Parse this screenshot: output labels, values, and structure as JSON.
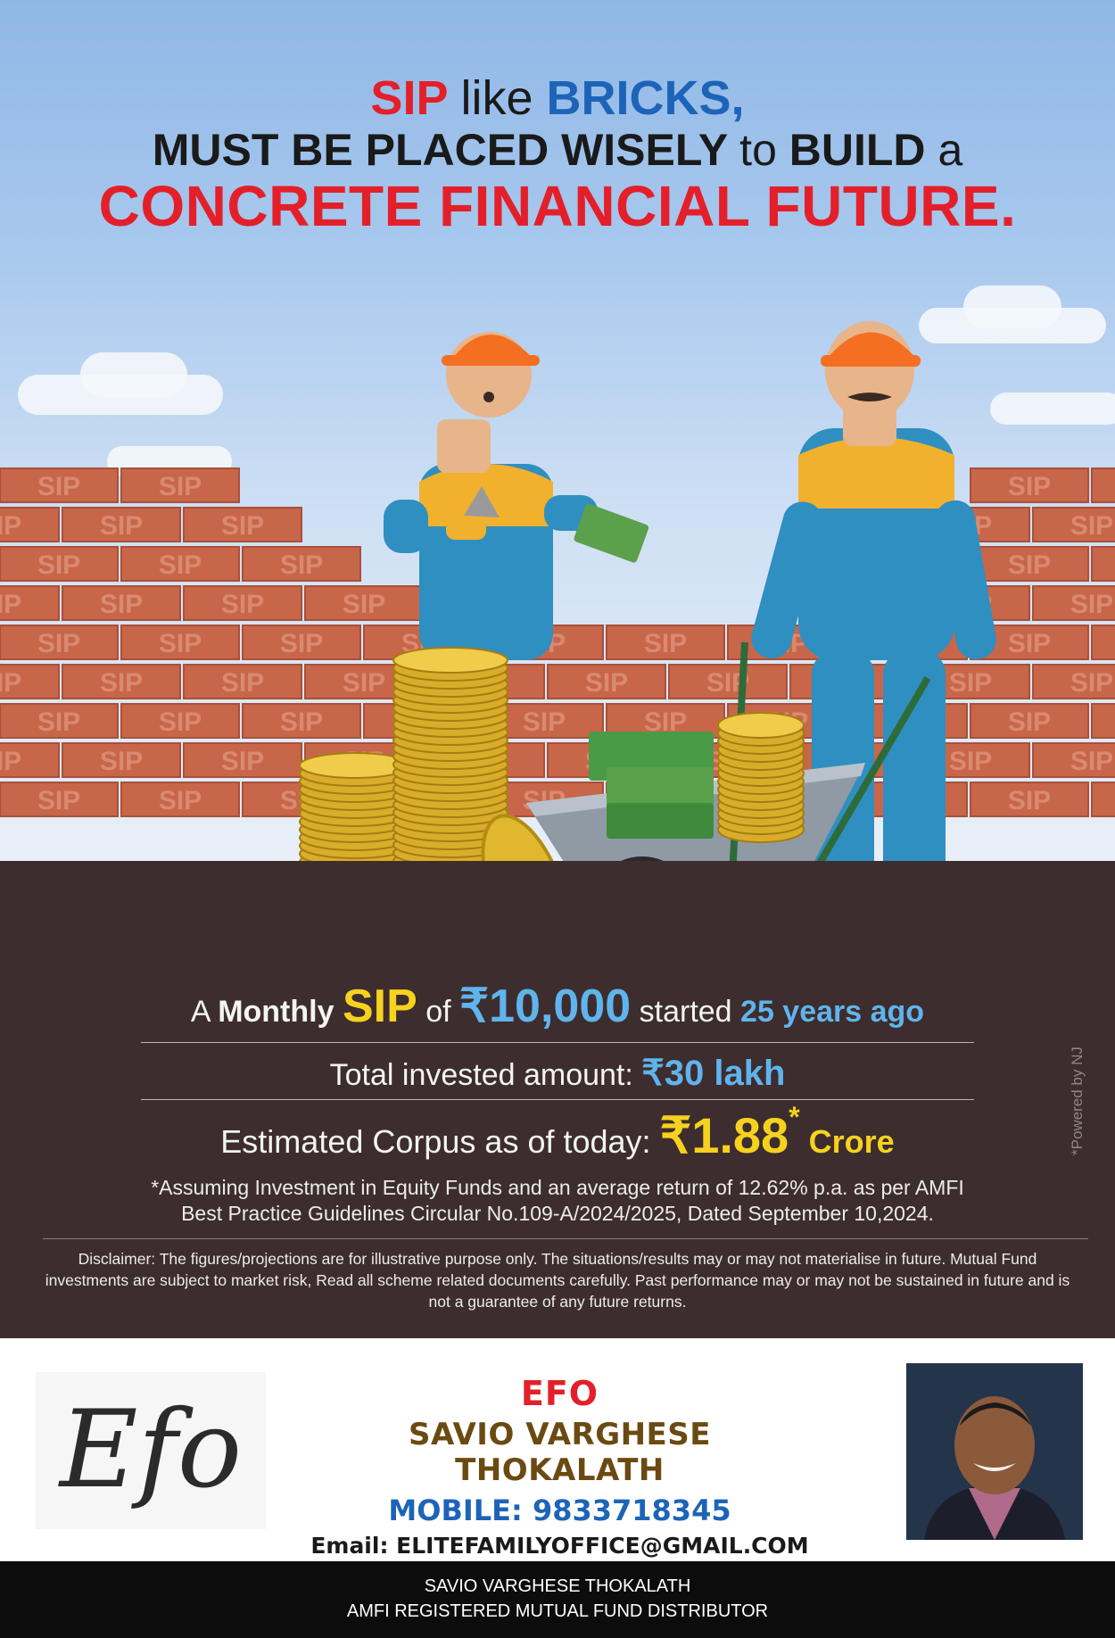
{
  "headline": {
    "line1": {
      "sip": "SIP",
      "like": "like",
      "bricks": "BRICKS,"
    },
    "line2": {
      "a": "MUST BE PLACED WISELY",
      "b": "to",
      "c": "BUILD",
      "d": "a"
    },
    "line3": "CONCRETE FINANCIAL FUTURE."
  },
  "brick_text": "SIP",
  "info": {
    "line1": {
      "a": "A",
      "monthly": "Monthly",
      "sip": "SIP",
      "of": "of",
      "amount": "₹10,000",
      "started": "started",
      "years": "25 years ago"
    },
    "line2": {
      "label": "Total invested amount:",
      "value": "₹30 lakh"
    },
    "line3": {
      "label": "Estimated Corpus as of today:",
      "value": "₹1.88",
      "asterisk": "*",
      "unit": "Crore"
    },
    "assumption_1": "*Assuming Investment in Equity Funds and an average return of 12.62% p.a. as per AMFI",
    "assumption_2": "Best Practice  Guidelines Circular No.109-A/2024/2025, Dated September 10,2024.",
    "disclaimer": "Disclaimer: The figures/projections are for illustrative purpose only. The situations/results may or may not materialise in future. Mutual Fund investments are subject to market risk, Read all scheme related documents carefully. Past performance may or may not be sustained in future and is not a guarantee of any future returns.",
    "powered_by": "*Powered by NJ"
  },
  "contact": {
    "logo": "Efo",
    "company": "EFO",
    "name": "SAVIO VARGHESE THOKALATH",
    "mobile": "MOBILE: 9833718345",
    "email": "Email: ELITEFAMILYOFFICE@GMAIL.COM"
  },
  "footer": {
    "line1": "SAVIO VARGHESE THOKALATH",
    "line2": "AMFI REGISTERED MUTUAL FUND DISTRIBUTOR"
  },
  "colors": {
    "red": "#e3202a",
    "blue": "#1d64b8",
    "yellow": "#f6d21f",
    "light_blue": "#5fb4ec",
    "ground": "#3d2d2e",
    "brick": "#c8664a"
  }
}
